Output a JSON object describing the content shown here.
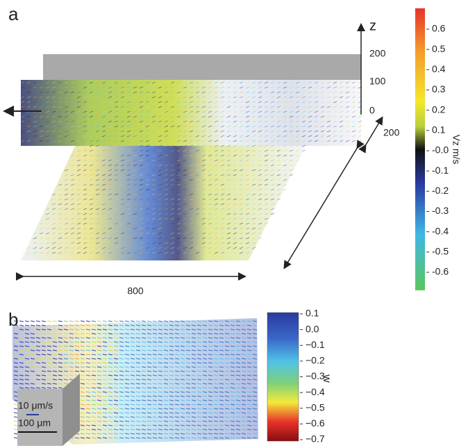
{
  "panel_a": {
    "label": "a",
    "axes": {
      "z_label": "z",
      "z_ticks": [
        "200",
        "100",
        "0"
      ],
      "depth": "200",
      "length": "800"
    },
    "colorbar": {
      "label": "Vz m/s",
      "ticks": [
        "0.6",
        "0.5",
        "0.4",
        "0.3",
        "0.2",
        "0.1",
        "-0.0",
        "-0.1",
        "-0.2",
        "-0.3",
        "-0.4",
        "-0.5",
        "-0.6"
      ]
    }
  },
  "panel_b": {
    "label": "b",
    "scale": {
      "velocity": "10 μm/s",
      "length": "100 μm"
    },
    "colorbar": {
      "label": "w",
      "ticks": [
        "0.1",
        "0.0",
        "−0.1",
        "−0.2",
        "−0.3",
        "−0.4",
        "−0.5",
        "−0.6",
        "−0.7"
      ]
    }
  }
}
